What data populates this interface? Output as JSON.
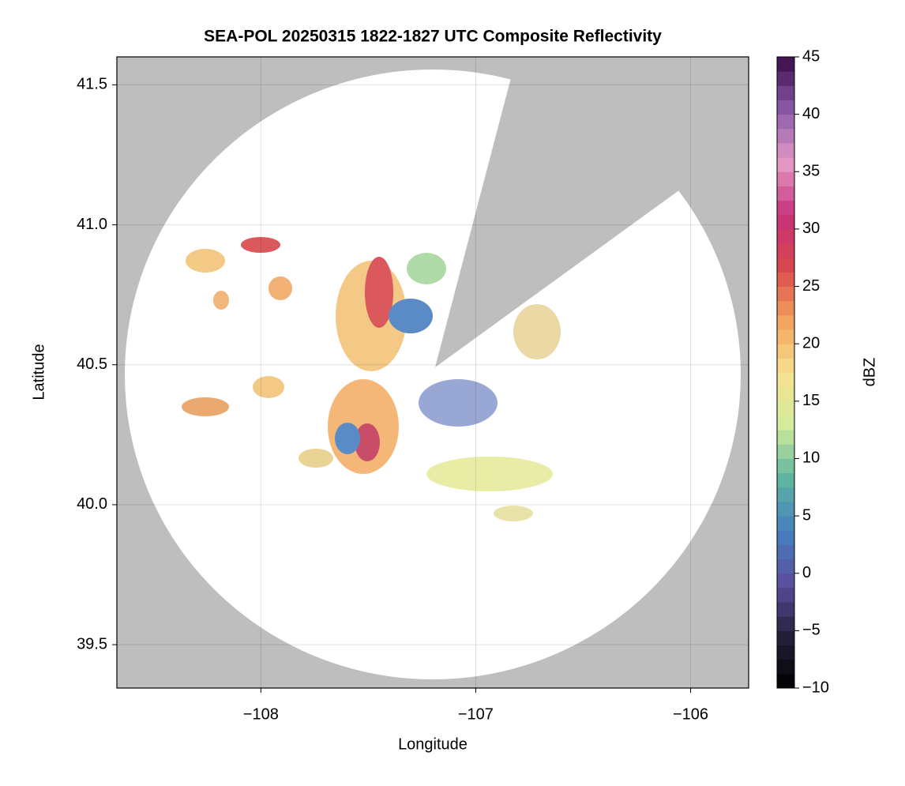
{
  "chart_data": {
    "type": "radar-map",
    "title": "SEA-POL 20250315 1822-1827 UTC Composite Reflectivity",
    "xlabel": "Longitude",
    "ylabel": "Latitude",
    "xlim": [
      -108.67,
      -105.73
    ],
    "ylim": [
      39.345,
      41.6
    ],
    "xticks": [
      {
        "value": -108,
        "label": "−108"
      },
      {
        "value": -107,
        "label": "−107"
      },
      {
        "value": -106,
        "label": "−106"
      }
    ],
    "yticks": [
      39.5,
      {
        "value": 40.0,
        "label": "40.0"
      },
      40.5,
      {
        "value": 41.0,
        "label": "41.0"
      },
      41.5
    ],
    "grid": true,
    "background_color": "#bebebe",
    "colorbar": {
      "label": "dBZ",
      "lim": [
        -10,
        45
      ],
      "ticks": [
        {
          "value": -10,
          "label": "−10"
        },
        {
          "value": -5,
          "label": "−5"
        },
        0,
        5,
        10,
        15,
        20,
        25,
        30,
        35,
        40,
        45
      ],
      "colors": [
        "#000000",
        "#25203a",
        "#5b4f9e",
        "#4580bf",
        "#5fb5a0",
        "#d2ec9c",
        "#f7e08f",
        "#f3a25d",
        "#d8474c",
        "#c7317a",
        "#e49ac8",
        "#8a5aa8",
        "#3a0a47"
      ]
    }
  }
}
